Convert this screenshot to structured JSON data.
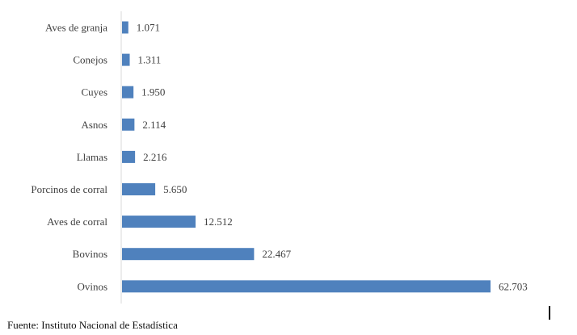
{
  "chart_data": {
    "type": "bar",
    "orientation": "horizontal",
    "categories": [
      "Aves de granja",
      "Conejos",
      "Cuyes",
      "Asnos",
      "Llamas",
      "Porcinos  de  corral",
      "Aves de  corral",
      "Bovinos",
      "Ovinos"
    ],
    "values": [
      1071,
      1311,
      1950,
      2114,
      2216,
      5650,
      12512,
      22467,
      62703
    ],
    "data_labels": [
      "1.071",
      "1.311",
      "1.950",
      "2.114",
      "2.216",
      "5.650",
      "12.512",
      "22.467",
      "62.703"
    ],
    "xlim": [
      0,
      62703
    ],
    "grid": false,
    "legend": "none",
    "bar_color": "#4f81bd",
    "axis_color": "#d9d9d9"
  },
  "source_note": "Fuente: Instituto Nacional de Estadística"
}
